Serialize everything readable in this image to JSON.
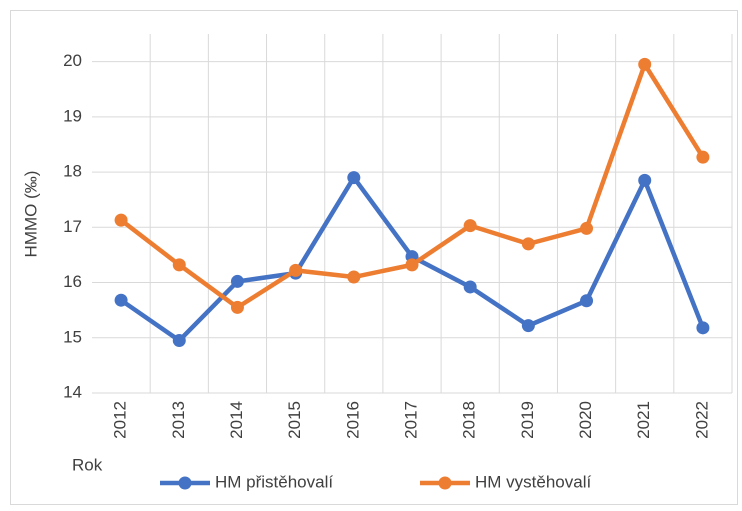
{
  "chart_data": {
    "type": "line",
    "y_label": "HMMO (‰)",
    "x_label": "Rok",
    "categories": [
      "2012",
      "2013",
      "2014",
      "2015",
      "2016",
      "2017",
      "2018",
      "2019",
      "2020",
      "2021",
      "2022"
    ],
    "series": [
      {
        "name": "HM přistěhovalí",
        "color": "#4472c4",
        "values": [
          15.68,
          14.95,
          16.02,
          16.17,
          17.9,
          16.47,
          15.92,
          15.22,
          15.67,
          17.85,
          15.18
        ]
      },
      {
        "name": "HM vystěhovalí",
        "color": "#ed7d31",
        "values": [
          17.13,
          16.32,
          15.55,
          16.22,
          16.1,
          16.32,
          17.03,
          16.7,
          16.98,
          19.95,
          18.27
        ]
      }
    ],
    "ylim": [
      14,
      20.5
    ],
    "yticks": [
      14,
      15,
      16,
      17,
      18,
      19,
      20
    ],
    "grid": true,
    "legend": "bottom"
  }
}
